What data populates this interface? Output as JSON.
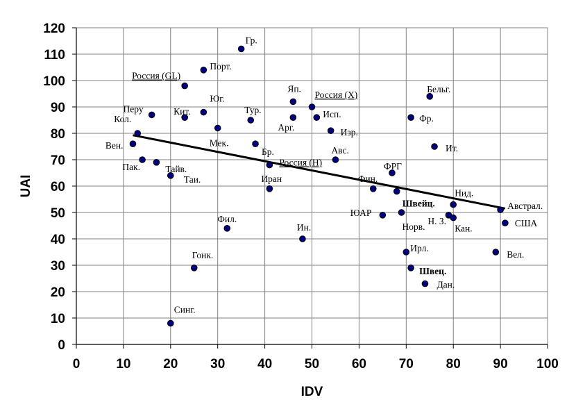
{
  "chart_data": {
    "type": "scatter",
    "xlabel": "IDV",
    "ylabel": "UAI",
    "xlim": [
      0,
      100
    ],
    "ylim": [
      0,
      120
    ],
    "x_ticks": [
      0,
      10,
      20,
      30,
      40,
      50,
      60,
      70,
      80,
      90,
      100
    ],
    "y_ticks": [
      0,
      10,
      20,
      30,
      40,
      50,
      60,
      70,
      80,
      90,
      100,
      110,
      120
    ],
    "grid": true,
    "marker_color": "#00007f",
    "marker_edge": "#000000",
    "trendline": {
      "x": [
        12,
        91
      ],
      "y": [
        79.3,
        51.5
      ],
      "color": "#000000"
    },
    "points": [
      {
        "label": "Гр.",
        "x": 35,
        "y": 112
      },
      {
        "label": "Порт.",
        "x": 27,
        "y": 104
      },
      {
        "label": "Россия (GL)",
        "x": 23,
        "y": 98,
        "underline": true
      },
      {
        "label": "Юг.",
        "x": 27,
        "y": 88
      },
      {
        "label": "Кит.",
        "x": 23,
        "y": 86
      },
      {
        "label": "Перу",
        "x": 16,
        "y": 87
      },
      {
        "label": "Кол.",
        "x": 13,
        "y": 80
      },
      {
        "label": "Вен.",
        "x": 12,
        "y": 76
      },
      {
        "label": "Пак.",
        "x": 14,
        "y": 70
      },
      {
        "label": "Тайв.",
        "x": 17,
        "y": 69
      },
      {
        "label": "Таи.",
        "x": 20,
        "y": 64
      },
      {
        "label": "Мек.",
        "x": 30,
        "y": 82
      },
      {
        "label": "Тур.",
        "x": 37,
        "y": 85
      },
      {
        "label": "Бр.",
        "x": 38,
        "y": 76
      },
      {
        "label": "Россия (Н)",
        "x": 41,
        "y": 68,
        "underline": true
      },
      {
        "label": "Иран",
        "x": 41,
        "y": 59
      },
      {
        "label": "Яп.",
        "x": 46,
        "y": 92
      },
      {
        "label": "Арг.",
        "x": 46,
        "y": 86
      },
      {
        "label": "Россия (X)",
        "x": 50,
        "y": 90,
        "underline": true
      },
      {
        "label": "Исп.",
        "x": 51,
        "y": 86
      },
      {
        "label": "Изр.",
        "x": 54,
        "y": 81
      },
      {
        "label": "Авс.",
        "x": 55,
        "y": 70
      },
      {
        "label": "Бельг.",
        "x": 75,
        "y": 94
      },
      {
        "label": "Фр.",
        "x": 71,
        "y": 86
      },
      {
        "label": "Ит.",
        "x": 76,
        "y": 75
      },
      {
        "label": "ФРГ",
        "x": 67,
        "y": 65
      },
      {
        "label": "Фин.",
        "x": 63,
        "y": 59
      },
      {
        "label": "Швейц.",
        "x": 68,
        "y": 58,
        "bold": true
      },
      {
        "label": "ЮАР",
        "x": 65,
        "y": 49
      },
      {
        "label": "Норв.",
        "x": 69,
        "y": 50
      },
      {
        "label": "Нид.",
        "x": 80,
        "y": 53
      },
      {
        "label": "Н. З.",
        "x": 79,
        "y": 49
      },
      {
        "label": "Кан.",
        "x": 80,
        "y": 48
      },
      {
        "label": "Австрал.",
        "x": 90,
        "y": 51
      },
      {
        "label": "США",
        "x": 91,
        "y": 46
      },
      {
        "label": "Фил.",
        "x": 32,
        "y": 44
      },
      {
        "label": "Ин.",
        "x": 48,
        "y": 40
      },
      {
        "label": "Ирл.",
        "x": 70,
        "y": 35
      },
      {
        "label": "Швец.",
        "x": 71,
        "y": 29,
        "bold": true
      },
      {
        "label": "Дан.",
        "x": 74,
        "y": 23
      },
      {
        "label": "Вел.",
        "x": 89,
        "y": 35
      },
      {
        "label": "Гонк.",
        "x": 25,
        "y": 29
      },
      {
        "label": "Синг.",
        "x": 20,
        "y": 8
      }
    ]
  }
}
